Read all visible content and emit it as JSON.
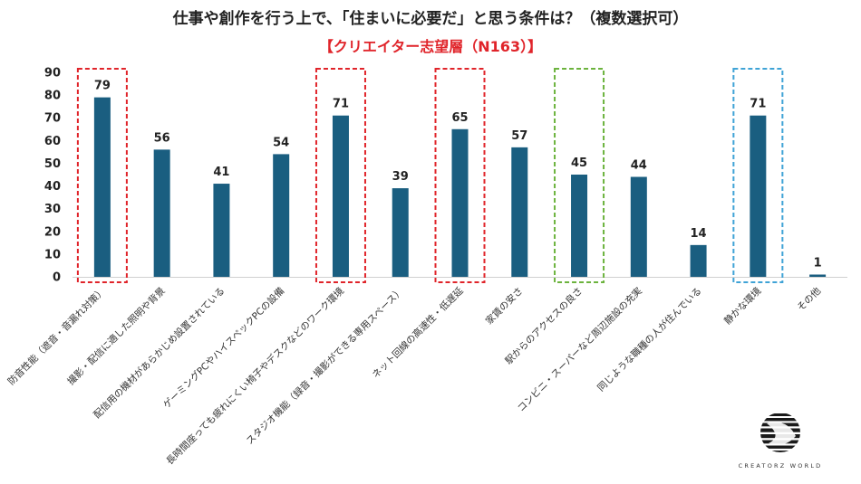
{
  "title": "仕事や創作を行う上で、「住まいに必要だ」と思う条件は？（複数選択可）",
  "subtitle": "【クリエイター志望層（N163）】",
  "brand": {
    "name": "CREATORZ WORLD",
    "logo_icon": "striped-globe-logo"
  },
  "colors": {
    "bar": "#1a5e80",
    "highlight_red": "#e0242a",
    "highlight_green": "#6cb33e",
    "highlight_blue": "#3fa3d6",
    "subtitle": "#e0242a"
  },
  "chart_data": {
    "type": "bar",
    "categories": [
      "防音性能（遮音・音漏れ対策）",
      "撮影・配信に適した照明や背景",
      "配信用の機材があらかじめ設置されている",
      "ゲーミングPCやハイスペックPCの設備",
      "長時間座っても疲れにくい椅子やデスクなどのワーク環境",
      "スタジオ機能（録音・撮影ができる専用スペース）",
      "ネット回線の高速性・低遅延",
      "家賃の安さ",
      "駅からのアクセスの良さ",
      "コンビニ・スーパーなど周辺施設の充実",
      "同じような職種の人が住んでいる",
      "静かな環境",
      "その他"
    ],
    "values": [
      79,
      56,
      41,
      54,
      71,
      39,
      65,
      57,
      45,
      44,
      14,
      71,
      1
    ],
    "ylim": [
      0,
      90
    ],
    "yticks": [
      0,
      10,
      20,
      30,
      40,
      50,
      60,
      70,
      80,
      90
    ],
    "grid": false,
    "legend": "none",
    "highlights": [
      {
        "category_index": 0,
        "color": "red"
      },
      {
        "category_index": 4,
        "color": "red"
      },
      {
        "category_index": 6,
        "color": "red"
      },
      {
        "category_index": 8,
        "color": "green"
      },
      {
        "category_index": 11,
        "color": "blue"
      }
    ]
  }
}
